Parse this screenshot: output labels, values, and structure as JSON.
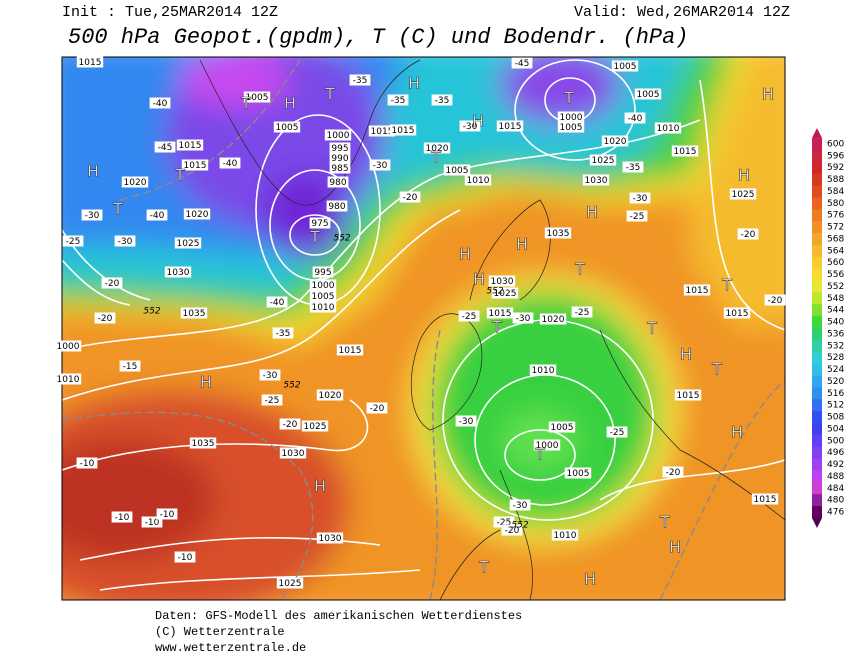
{
  "header": {
    "init": "Init : Tue,25MAR2014 12Z",
    "valid": "Valid: Wed,26MAR2014 12Z",
    "title": "500 hPa Geopot.(gpdm), T (C) und Bodendr. (hPa)"
  },
  "colorbar": {
    "ticks": [
      600,
      596,
      592,
      588,
      584,
      580,
      576,
      572,
      568,
      564,
      560,
      556,
      552,
      548,
      544,
      540,
      536,
      532,
      528,
      524,
      520,
      516,
      512,
      508,
      504,
      500,
      496,
      492,
      488,
      484,
      480,
      476
    ]
  },
  "map": {
    "pressure_labels": [
      1015,
      1005,
      1005,
      1000,
      995,
      990,
      985,
      980,
      980,
      975,
      995,
      1000,
      1005,
      1010,
      1015,
      1015,
      1020,
      1005,
      1010,
      1015,
      1000,
      1005,
      1005,
      1005,
      1010,
      1020,
      1025,
      1030,
      1015,
      1035,
      1030,
      1025,
      1015,
      1020,
      1015,
      1020,
      1025,
      1030,
      1035,
      1020,
      1025,
      1030,
      1020,
      1035,
      1010,
      1005,
      1000,
      1005,
      1010,
      1015,
      1015,
      1015,
      1025,
      1015,
      1030,
      1025,
      1015,
      1015,
      1000,
      1010
    ],
    "temperature_labels": [
      -40,
      -35,
      -35,
      -35,
      -30,
      -20,
      -30,
      -45,
      -40,
      -35,
      -30,
      -25,
      -45,
      -40,
      -40,
      -30,
      -25,
      -30,
      -20,
      -15,
      -20,
      -40,
      -35,
      -30,
      -25,
      -20,
      -20,
      -25,
      -30,
      -25,
      -30,
      -25,
      -30,
      -25,
      -20,
      -20,
      -20,
      -20,
      -10,
      -10,
      -10,
      -10,
      -10
    ],
    "isohypse_labels": [
      552,
      552,
      552,
      552,
      552
    ],
    "systems": [
      "H",
      "T",
      "T",
      "T",
      "H",
      "T",
      "H",
      "H",
      "T",
      "T",
      "H",
      "H",
      "H",
      "H",
      "H",
      "H",
      "T",
      "T",
      "T",
      "T",
      "H",
      "T",
      "T",
      "H",
      "H",
      "H",
      "T",
      "H",
      "T",
      "H",
      "T"
    ]
  },
  "footer": {
    "lines": [
      "Daten: GFS-Modell des amerikanischen Wetterdienstes",
      "(C) Wetterzentrale",
      "www.wetterzentrale.de"
    ]
  }
}
